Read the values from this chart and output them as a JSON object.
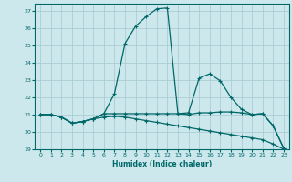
{
  "xlabel": "Humidex (Indice chaleur)",
  "bg_color": "#cce8ec",
  "grid_color": "#aacdd4",
  "line_color": "#006868",
  "xlim": [
    -0.5,
    23.5
  ],
  "ylim": [
    19,
    27.4
  ],
  "xticks": [
    0,
    1,
    2,
    3,
    4,
    5,
    6,
    7,
    8,
    9,
    10,
    11,
    12,
    13,
    14,
    15,
    16,
    17,
    18,
    19,
    20,
    21,
    22,
    23
  ],
  "yticks": [
    19,
    20,
    21,
    22,
    23,
    24,
    25,
    26,
    27
  ],
  "line1_x": [
    0,
    1,
    2,
    3,
    4,
    5,
    6,
    7,
    8,
    9,
    10,
    11,
    12,
    13,
    14,
    15,
    16,
    17,
    18,
    19,
    20,
    21,
    22,
    23
  ],
  "line1_y": [
    21.0,
    21.0,
    20.85,
    20.5,
    20.6,
    20.75,
    21.05,
    22.2,
    25.1,
    26.1,
    26.65,
    27.1,
    27.15,
    21.05,
    21.0,
    21.1,
    21.1,
    21.15,
    21.15,
    21.1,
    21.0,
    21.05,
    20.35,
    19.05
  ],
  "line2_x": [
    0,
    1,
    2,
    3,
    4,
    5,
    6,
    7,
    8,
    9,
    10,
    11,
    12,
    13,
    14,
    15,
    16,
    17,
    18,
    19,
    20,
    21,
    22,
    23
  ],
  "line2_y": [
    21.0,
    21.0,
    20.85,
    20.5,
    20.6,
    20.75,
    21.05,
    21.05,
    21.05,
    21.05,
    21.05,
    21.05,
    21.05,
    21.05,
    21.1,
    23.1,
    23.35,
    22.95,
    22.0,
    21.3,
    21.0,
    21.05,
    20.35,
    19.05
  ],
  "line3_x": [
    0,
    1,
    2,
    3,
    4,
    5,
    6,
    7,
    8,
    9,
    10,
    11,
    12,
    13,
    14,
    15,
    16,
    17,
    18,
    19,
    20,
    21,
    22,
    23
  ],
  "line3_y": [
    21.0,
    21.0,
    20.85,
    20.5,
    20.6,
    20.75,
    20.85,
    20.9,
    20.85,
    20.75,
    20.65,
    20.55,
    20.45,
    20.35,
    20.25,
    20.15,
    20.05,
    19.95,
    19.85,
    19.75,
    19.65,
    19.55,
    19.3,
    19.0
  ]
}
